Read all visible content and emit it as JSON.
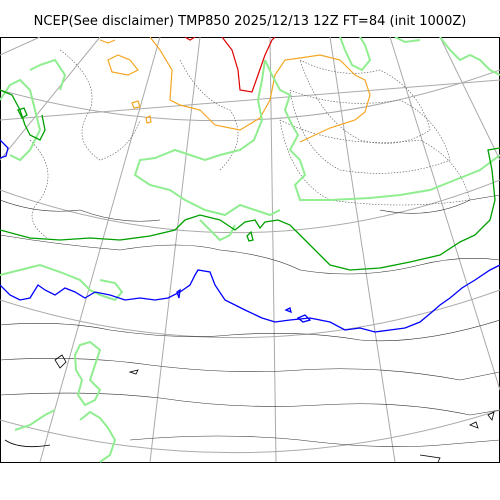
{
  "title": "NCEP(See disclaimer) TMP850 2025/12/13 12Z FT=84 (init 1000Z)",
  "colors": {
    "grid": "#aaaaaa",
    "coastline": "#000000",
    "isotherm_thin": "#333333",
    "warm_line_red": "#e00000",
    "warm_line_orange": "#f5a623",
    "zero_line_green": "#00a000",
    "light_green_line": "#90ee90",
    "cold_line_blue": "#0000ff"
  }
}
